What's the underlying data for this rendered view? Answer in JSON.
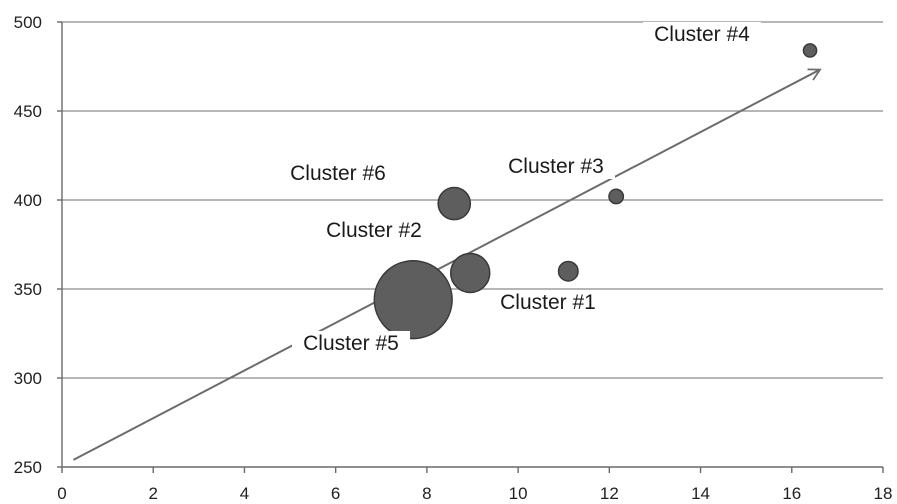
{
  "chart_data": {
    "type": "bubble",
    "title": "",
    "xlabel": "",
    "ylabel": "",
    "xlim": [
      0,
      18
    ],
    "ylim": [
      250,
      500
    ],
    "x_ticks": [
      0,
      2,
      4,
      6,
      8,
      10,
      12,
      14,
      16,
      18
    ],
    "y_ticks": [
      250,
      300,
      350,
      400,
      450,
      500
    ],
    "grid": "horizontal",
    "legend": "none",
    "points": [
      {
        "label": "Cluster #1",
        "x": 11.1,
        "y": 360,
        "size": 1.1
      },
      {
        "label": "Cluster #2",
        "x": 8.95,
        "y": 359,
        "size": 4.4
      },
      {
        "label": "Cluster #3",
        "x": 12.15,
        "y": 402,
        "size": 0.6
      },
      {
        "label": "Cluster #4",
        "x": 16.4,
        "y": 484,
        "size": 0.5
      },
      {
        "label": "Cluster #5",
        "x": 7.7,
        "y": 344,
        "size": 17.5
      },
      {
        "label": "Cluster #6",
        "x": 8.6,
        "y": 398,
        "size": 3.0
      }
    ],
    "trend_arrow": {
      "from": {
        "x": 0.25,
        "y": 254
      },
      "to": {
        "x": 16.6,
        "y": 473
      }
    },
    "colors": {
      "bubble": "#5e5e5e",
      "bubble_edge": "#3a3a3a",
      "trend": "#6c6c6c",
      "grid": "#8a8a8a"
    }
  }
}
